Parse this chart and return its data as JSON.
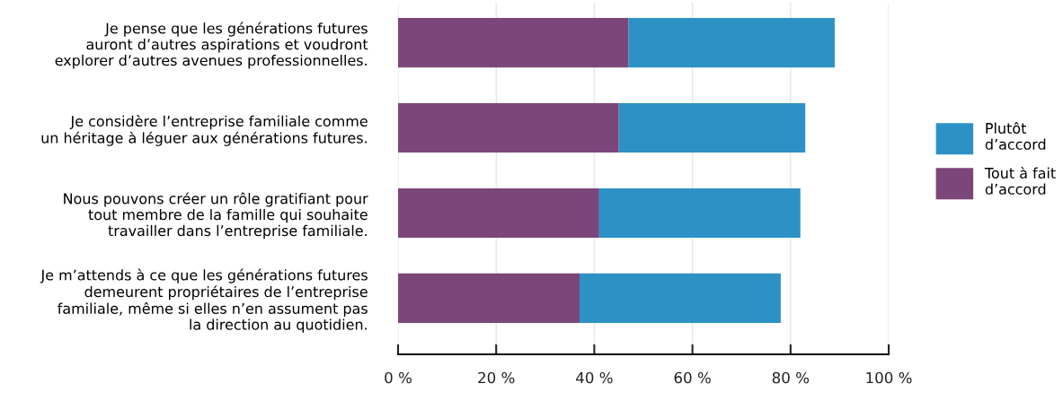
{
  "chart_data": {
    "type": "bar",
    "orientation": "horizontal",
    "stacked": true,
    "categories": [
      "Je pense que les générations futures\nauront d’autres aspirations et voudront\nexplorer d’autres avenues professionnelles.",
      "Je considère l’entreprise familiale comme\nun héritage à léguer aux générations futures.",
      "Nous pouvons créer un rôle gratifiant pour\ntout membre de la famille qui souhaite\ntravailler dans l’entreprise familiale.",
      "Je m’attends à ce que les générations futures\ndemeurent propriétaires de l’entreprise\nfamiliale, même si elles n’en assument pas\nla direction au quotidien."
    ],
    "series": [
      {
        "name": "Tout à fait\nd’accord",
        "color": "#7b4679",
        "values": [
          47,
          45,
          41,
          37
        ]
      },
      {
        "name": "Plutôt\nd’accord",
        "color": "#2e91c6",
        "values": [
          42,
          38,
          41,
          41
        ]
      }
    ],
    "xlim": [
      0,
      100
    ],
    "xticks": [
      {
        "value": 0,
        "label": "0 %"
      },
      {
        "value": 20,
        "label": "20 %"
      },
      {
        "value": 40,
        "label": "40 %"
      },
      {
        "value": 60,
        "label": "60 %"
      },
      {
        "value": 80,
        "label": "80 %"
      },
      {
        "value": 100,
        "label": "100 %"
      }
    ],
    "grid": "x",
    "legend": "right"
  }
}
